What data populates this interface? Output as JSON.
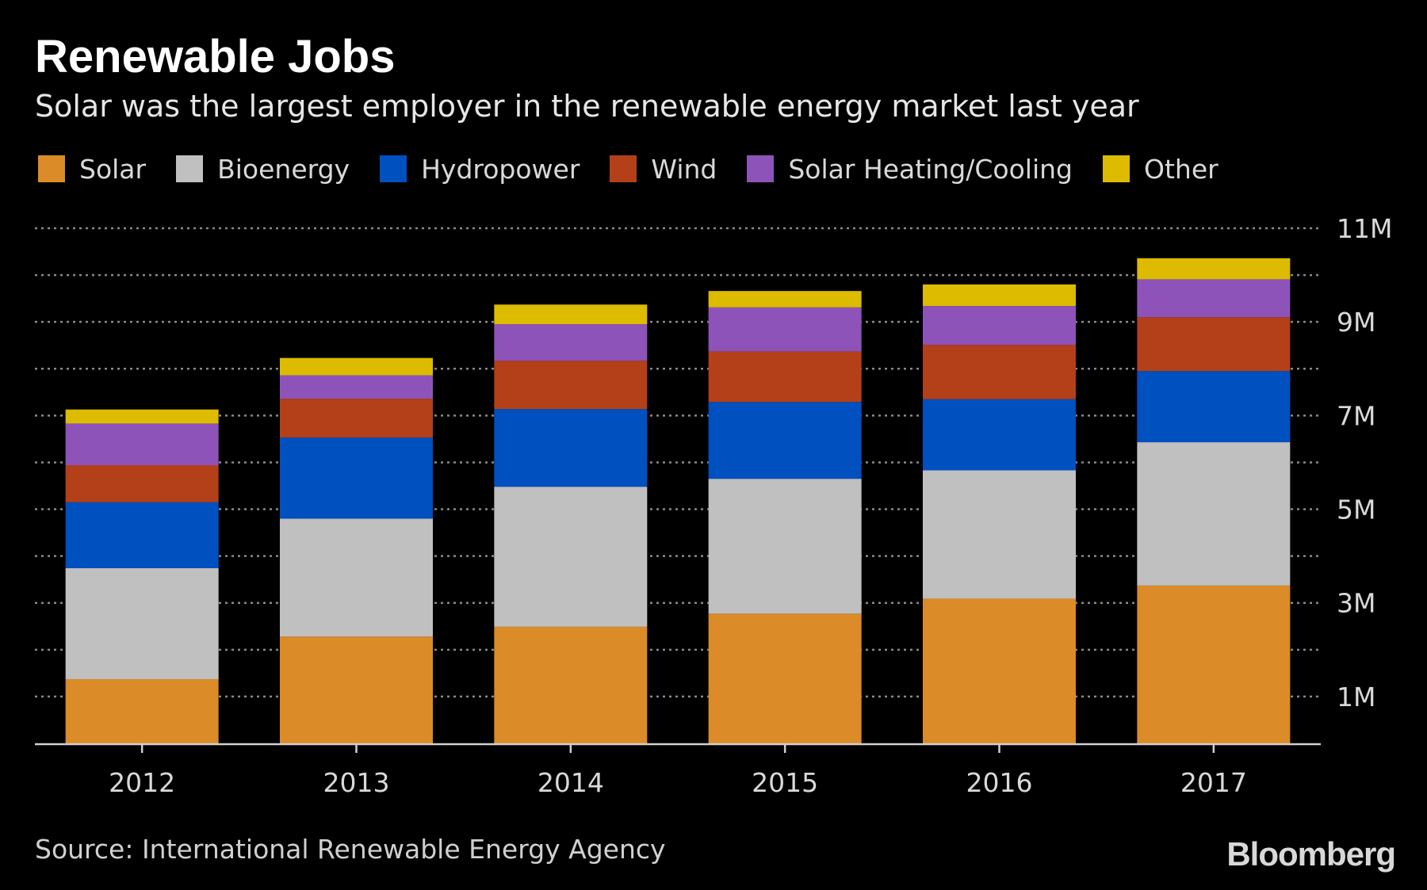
{
  "header": {
    "title": "Renewable Jobs",
    "subtitle": "Solar was the largest employer in the renewable energy market last year"
  },
  "footer": {
    "source": "Source: International Renewable Energy Agency",
    "brand": "Bloomberg"
  },
  "chart_data": {
    "type": "bar",
    "stacked": true,
    "title": "Renewable Jobs",
    "subtitle": "Solar was the largest employer in the renewable energy market last year",
    "xlabel": "",
    "ylabel": "",
    "ylim": [
      0,
      11000000
    ],
    "y_ticks": [
      1000000,
      3000000,
      5000000,
      7000000,
      9000000,
      11000000
    ],
    "y_tick_labels": [
      "1M",
      "3M",
      "5M",
      "7M",
      "9M",
      "11M"
    ],
    "y_gridlines": [
      1000000,
      2000000,
      3000000,
      4000000,
      5000000,
      6000000,
      7000000,
      8000000,
      9000000,
      10000000,
      11000000
    ],
    "grid": true,
    "y_axis_position": "right",
    "legend_position": "top-left",
    "categories": [
      "2012",
      "2013",
      "2014",
      "2015",
      "2016",
      "2017"
    ],
    "series": [
      {
        "name": "Solar",
        "color": "#db8b27",
        "values": [
          1370000,
          2280000,
          2490000,
          2770000,
          3090000,
          3370000
        ]
      },
      {
        "name": "Bioenergy",
        "color": "#c0c0c0",
        "values": [
          2370000,
          2520000,
          2990000,
          2880000,
          2740000,
          3060000
        ]
      },
      {
        "name": "Hydropower",
        "color": "#0050c0",
        "values": [
          1410000,
          1730000,
          1660000,
          1640000,
          1520000,
          1520000
        ]
      },
      {
        "name": "Wind",
        "color": "#b34019",
        "values": [
          790000,
          830000,
          1030000,
          1080000,
          1160000,
          1150000
        ]
      },
      {
        "name": "Solar Heating/Cooling",
        "color": "#8e53b9",
        "values": [
          890000,
          500000,
          780000,
          940000,
          830000,
          810000
        ]
      },
      {
        "name": "Other",
        "color": "#dcbb00",
        "values": [
          300000,
          370000,
          420000,
          350000,
          460000,
          450000
        ]
      }
    ]
  }
}
